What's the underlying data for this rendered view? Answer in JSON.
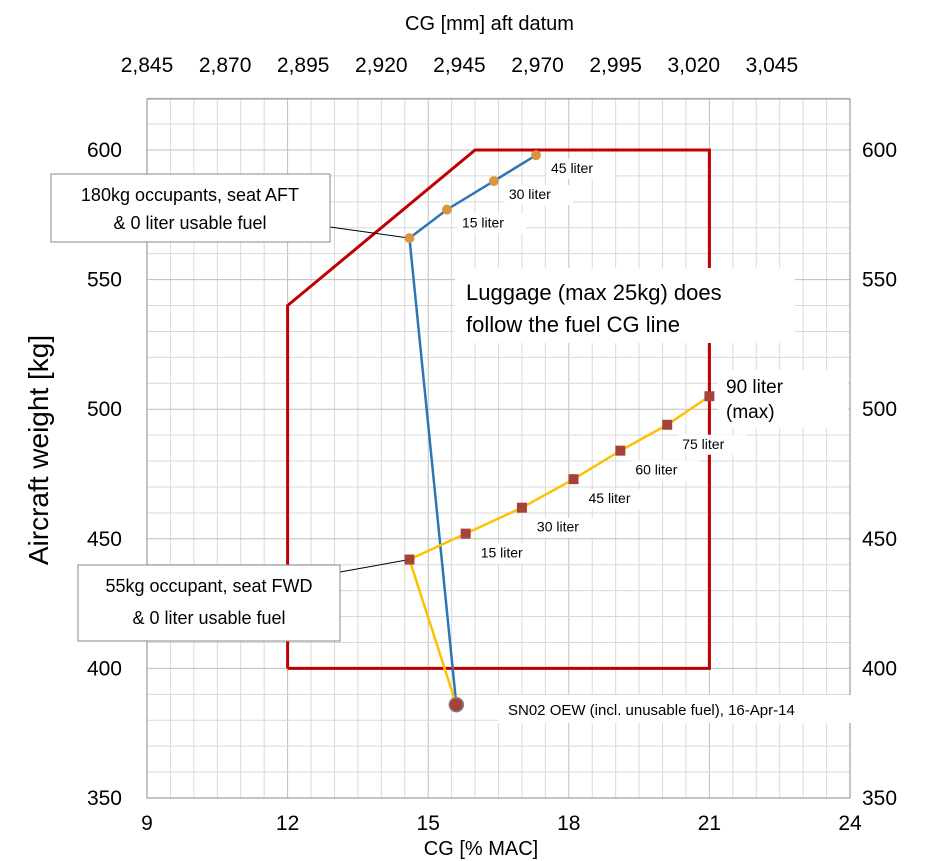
{
  "chart_data": {
    "type": "line",
    "xlabel": "CG [% MAC]",
    "ylabel": "Aircraft weight [kg]",
    "top_xlabel": "CG [mm] aft datum",
    "xlim": [
      9,
      24
    ],
    "ylim": [
      350,
      600
    ],
    "x_ticks": [
      "9",
      "12",
      "15",
      "18",
      "21",
      "24"
    ],
    "y_ticks": [
      "350",
      "400",
      "450",
      "500",
      "550",
      "600"
    ],
    "top_ticks": [
      "2,845",
      "2,870",
      "2,895",
      "2,920",
      "2,945",
      "2,970",
      "2,995",
      "3,020",
      "3,045"
    ],
    "top_tick_positions": [
      9,
      10.667,
      12.333,
      14,
      15.667,
      17.333,
      19,
      20.667,
      22.333
    ],
    "grid": true,
    "envelope": {
      "color": "#C00000",
      "points": [
        [
          12,
          400
        ],
        [
          12,
          540
        ],
        [
          16,
          600
        ],
        [
          21,
          600
        ],
        [
          21,
          400
        ],
        [
          12,
          400
        ]
      ]
    },
    "series": [
      {
        "name": "180kg occupants, seat AFT",
        "color": "#2E75B6",
        "marker_color": "#D9953F",
        "points": [
          [
            15.6,
            386
          ],
          [
            14.6,
            566
          ],
          [
            15.4,
            577
          ],
          [
            16.4,
            588
          ],
          [
            17.3,
            598
          ]
        ],
        "labels": [
          "",
          "",
          "15 liter",
          "30 liter",
          "45 liter"
        ]
      },
      {
        "name": "55kg occupant, seat FWD",
        "color": "#FFC000",
        "marker_color": "#A5423A",
        "points": [
          [
            15.6,
            386
          ],
          [
            14.6,
            442
          ],
          [
            15.8,
            452
          ],
          [
            17.0,
            462
          ],
          [
            18.1,
            473
          ],
          [
            19.1,
            484
          ],
          [
            20.1,
            494
          ],
          [
            21.0,
            505
          ]
        ],
        "labels": [
          "",
          "",
          "15 liter",
          "30 liter",
          "45 liter",
          "60 liter",
          "75 liter",
          "90 liter"
        ]
      }
    ],
    "oew_point": [
      15.6,
      386
    ],
    "annotations": {
      "aft_callout": [
        "180kg occupants, seat AFT",
        "& 0 liter usable fuel"
      ],
      "fwd_callout": [
        "55kg occupant, seat FWD",
        "& 0 liter usable fuel"
      ],
      "luggage_note": [
        "Luggage (max 25kg) does",
        "follow the fuel CG line"
      ],
      "oew_label": "SN02 OEW (incl. unusable fuel), 16-Apr-14",
      "max_fuel_line1": "90 liter",
      "max_fuel_line2": "(max)"
    }
  }
}
